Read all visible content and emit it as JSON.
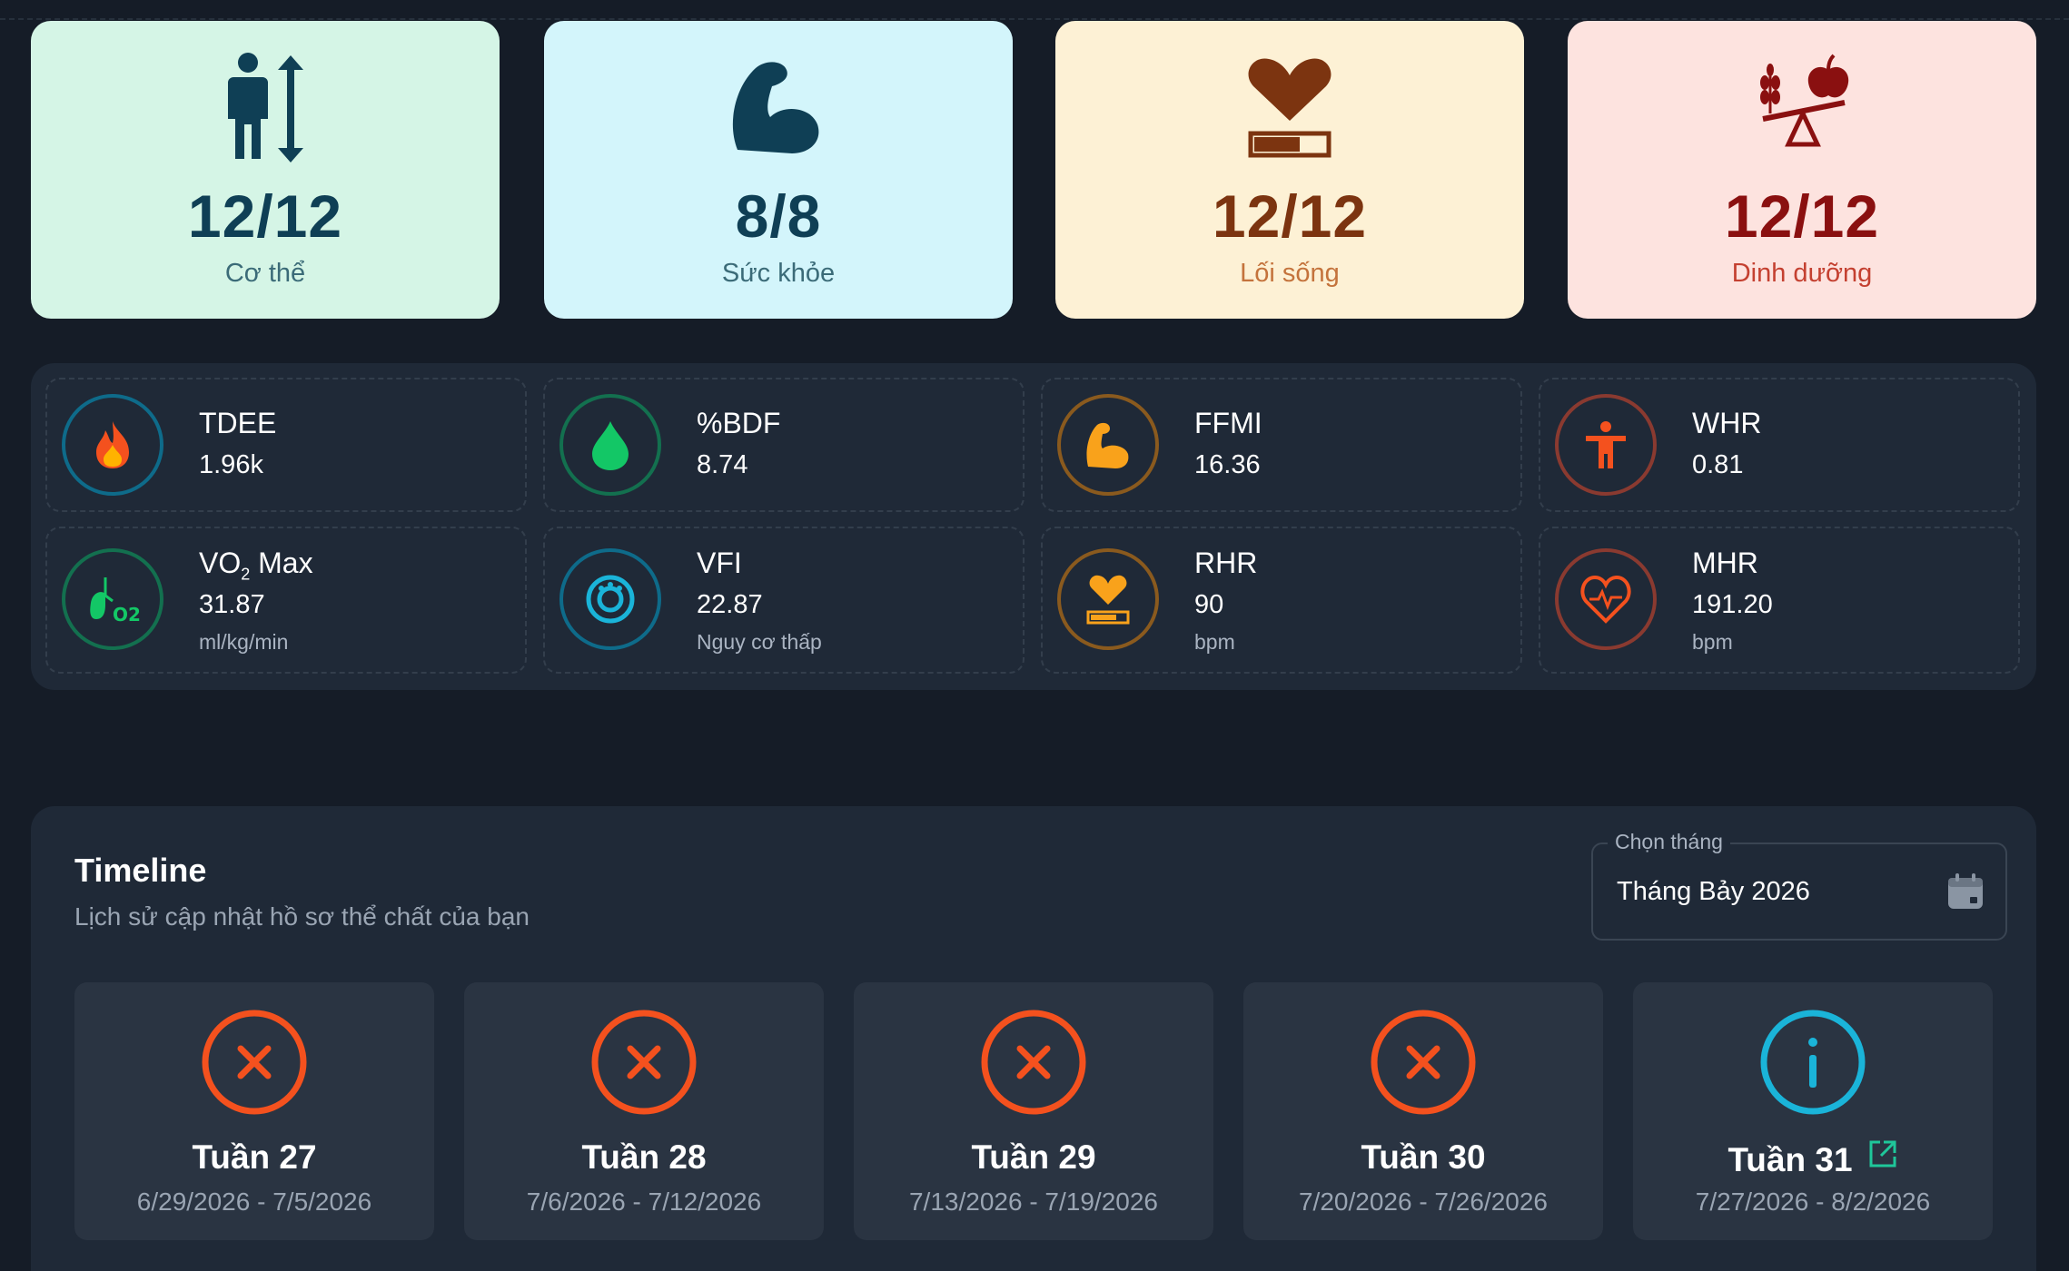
{
  "categories": [
    {
      "score": "12/12",
      "label": "Cơ thể",
      "icon": "body-height-icon",
      "bg": "#d5f5e6",
      "color": "#0f3f55"
    },
    {
      "score": "8/8",
      "label": "Sức khỏe",
      "icon": "flexed-arm-icon",
      "bg": "#d3f5fb",
      "color": "#0f3f55"
    },
    {
      "score": "12/12",
      "label": "Lối sống",
      "icon": "heart-battery-icon",
      "bg": "#fdf1d5",
      "color": "#7c3410"
    },
    {
      "score": "12/12",
      "label": "Dinh dưỡng",
      "icon": "nutrition-balance-icon",
      "bg": "#fde3df",
      "color": "#8a1010"
    }
  ],
  "metrics": [
    {
      "name": "TDEE",
      "value": "1.96k",
      "unit": "",
      "icon": "fire-icon",
      "ring": "#0e6b8a"
    },
    {
      "name": "%BDF",
      "value": "8.74",
      "unit": "",
      "icon": "water-drop-icon",
      "ring": "#13704f"
    },
    {
      "name": "FFMI",
      "value": "16.36",
      "unit": "",
      "icon": "flexed-arm-icon",
      "ring": "#8a5a1e"
    },
    {
      "name": "WHR",
      "value": "0.81",
      "unit": "",
      "icon": "person-icon",
      "ring": "#8a3a30"
    },
    {
      "name": "VO",
      "name_sub": "2",
      "name_rest": " Max",
      "value": "31.87",
      "unit": "ml/kg/min",
      "icon": "lungs-o2-icon",
      "ring": "#13704f"
    },
    {
      "name": "VFI",
      "value": "22.87",
      "unit": "Nguy cơ thấp",
      "icon": "visceral-fat-icon",
      "ring": "#0e6b8a"
    },
    {
      "name": "RHR",
      "value": "90",
      "unit": "bpm",
      "icon": "heart-battery-icon",
      "ring": "#8a5a1e"
    },
    {
      "name": "MHR",
      "value": "191.20",
      "unit": "bpm",
      "icon": "heart-pulse-icon",
      "ring": "#8a3a30"
    }
  ],
  "timeline": {
    "title": "Timeline",
    "subtitle": "Lịch sử cập nhật hồ sơ thể chất của bạn",
    "month_picker": {
      "label": "Chọn tháng",
      "value": "Tháng Bảy 2026",
      "icon": "calendar-icon"
    },
    "weeks": [
      {
        "title": "Tuần 27",
        "dates": "6/29/2026 - 7/5/2026",
        "status": "missed",
        "icon": "x-circle-icon"
      },
      {
        "title": "Tuần 28",
        "dates": "7/6/2026 - 7/12/2026",
        "status": "missed",
        "icon": "x-circle-icon"
      },
      {
        "title": "Tuần 29",
        "dates": "7/13/2026 - 7/19/2026",
        "status": "missed",
        "icon": "x-circle-icon"
      },
      {
        "title": "Tuần 30",
        "dates": "7/20/2026 - 7/26/2026",
        "status": "missed",
        "icon": "x-circle-icon"
      },
      {
        "title": "Tuần 31",
        "dates": "7/27/2026 - 8/2/2026",
        "status": "current",
        "icon": "info-circle-icon",
        "link_icon": "external-link-icon"
      }
    ]
  },
  "colors": {
    "missed": "#f4511e",
    "current": "#1ab4d9",
    "link": "#1fc79a"
  }
}
